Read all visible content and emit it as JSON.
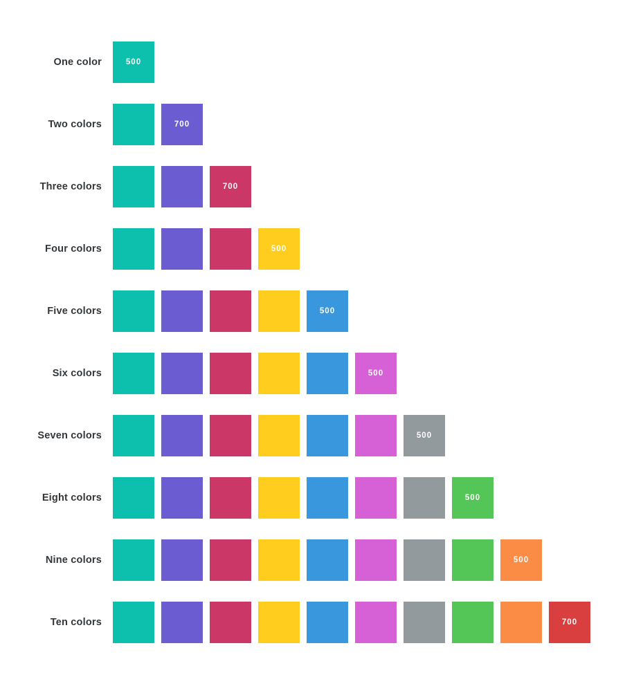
{
  "page": {
    "background": "#ffffff",
    "label_text_color": "#33373a",
    "badge_text_color": "#ffffff"
  },
  "palette": [
    {
      "name": "teal",
      "hex": "#0DBFAD",
      "weight": "500"
    },
    {
      "name": "purple",
      "hex": "#6C5CD2",
      "weight": "700"
    },
    {
      "name": "crimson",
      "hex": "#CB3867",
      "weight": "700"
    },
    {
      "name": "yellow",
      "hex": "#FFCD1E",
      "weight": "500"
    },
    {
      "name": "blue",
      "hex": "#3997DE",
      "weight": "500"
    },
    {
      "name": "orchid",
      "hex": "#D660D5",
      "weight": "500"
    },
    {
      "name": "gray",
      "hex": "#939A9D",
      "weight": "500"
    },
    {
      "name": "green",
      "hex": "#54C657",
      "weight": "500"
    },
    {
      "name": "orange",
      "hex": "#FA8C45",
      "weight": "500"
    },
    {
      "name": "red",
      "hex": "#D93F3F",
      "weight": "700"
    }
  ],
  "rows": [
    {
      "label": "One color",
      "count": 1
    },
    {
      "label": "Two colors",
      "count": 2
    },
    {
      "label": "Three colors",
      "count": 3
    },
    {
      "label": "Four colors",
      "count": 4
    },
    {
      "label": "Five colors",
      "count": 5
    },
    {
      "label": "Six colors",
      "count": 6
    },
    {
      "label": "Seven colors",
      "count": 7
    },
    {
      "label": "Eight colors",
      "count": 8
    },
    {
      "label": "Nine colors",
      "count": 9
    },
    {
      "label": "Ten colors",
      "count": 10
    }
  ]
}
